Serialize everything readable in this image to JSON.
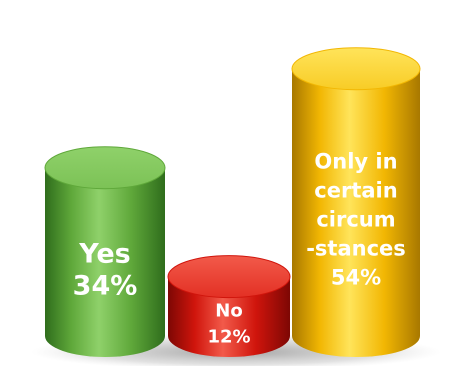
{
  "chart_data": {
    "type": "bar",
    "style": "3d-cylinder",
    "categories": [
      "Yes",
      "No",
      "Only in certain circum -stances"
    ],
    "values": [
      34,
      12,
      54
    ],
    "value_unit": "%",
    "title": "",
    "xlabel": "",
    "ylabel": "",
    "ylim": [
      0,
      60
    ],
    "grid": false,
    "legend": "none",
    "bars": [
      {
        "label_lines": [
          "Yes",
          "34%"
        ],
        "value": 34,
        "color_light": "#8fd16a",
        "color_mid": "#5fa83a",
        "color_dark": "#2f6d1c",
        "color_top": "#7cc256"
      },
      {
        "label_lines": [
          "No",
          "12%"
        ],
        "value": 12,
        "color_light": "#f25a4a",
        "color_mid": "#d0150c",
        "color_dark": "#7d0704",
        "color_top": "#e33024"
      },
      {
        "label_lines": [
          "Only in",
          "certain",
          "circum",
          "-stances",
          "54%"
        ],
        "value": 54,
        "color_light": "#ffe45a",
        "color_mid": "#f2b703",
        "color_dark": "#a87800",
        "color_top": "#f8cc26"
      }
    ]
  }
}
